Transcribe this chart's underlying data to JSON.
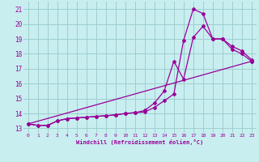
{
  "xlabel": "Windchill (Refroidissement éolien,°C)",
  "bg_color": "#c8eef0",
  "line_color": "#990099",
  "grid_color": "#9ecece",
  "xlim": [
    -0.5,
    23.5
  ],
  "ylim": [
    12.7,
    21.5
  ],
  "xticks": [
    0,
    1,
    2,
    3,
    4,
    5,
    6,
    7,
    8,
    9,
    10,
    11,
    12,
    13,
    14,
    15,
    16,
    17,
    18,
    19,
    20,
    21,
    22,
    23
  ],
  "yticks": [
    13,
    14,
    15,
    16,
    17,
    18,
    19,
    20,
    21
  ],
  "line1_x": [
    0,
    1,
    2,
    3,
    4,
    5,
    6,
    7,
    8,
    9,
    10,
    11,
    12,
    13,
    14,
    15,
    16,
    17,
    18,
    19,
    20,
    21,
    22,
    23
  ],
  "line1_y": [
    13.3,
    13.2,
    13.2,
    13.5,
    13.65,
    13.7,
    13.75,
    13.8,
    13.85,
    13.9,
    14.0,
    14.05,
    14.1,
    14.4,
    14.85,
    15.3,
    18.9,
    21.0,
    20.7,
    19.0,
    19.0,
    18.3,
    18.0,
    17.5
  ],
  "line2_x": [
    0,
    1,
    2,
    3,
    4,
    5,
    6,
    7,
    8,
    9,
    10,
    11,
    12,
    13,
    14,
    15,
    16,
    17,
    18,
    19,
    20,
    21,
    22,
    23
  ],
  "line2_y": [
    13.3,
    13.2,
    13.2,
    13.5,
    13.65,
    13.7,
    13.75,
    13.8,
    13.85,
    13.9,
    14.0,
    14.05,
    14.2,
    14.7,
    15.5,
    17.5,
    16.3,
    19.1,
    19.85,
    19.0,
    19.0,
    18.5,
    18.2,
    17.6
  ],
  "line3_x": [
    0,
    23
  ],
  "line3_y": [
    13.3,
    17.5
  ]
}
